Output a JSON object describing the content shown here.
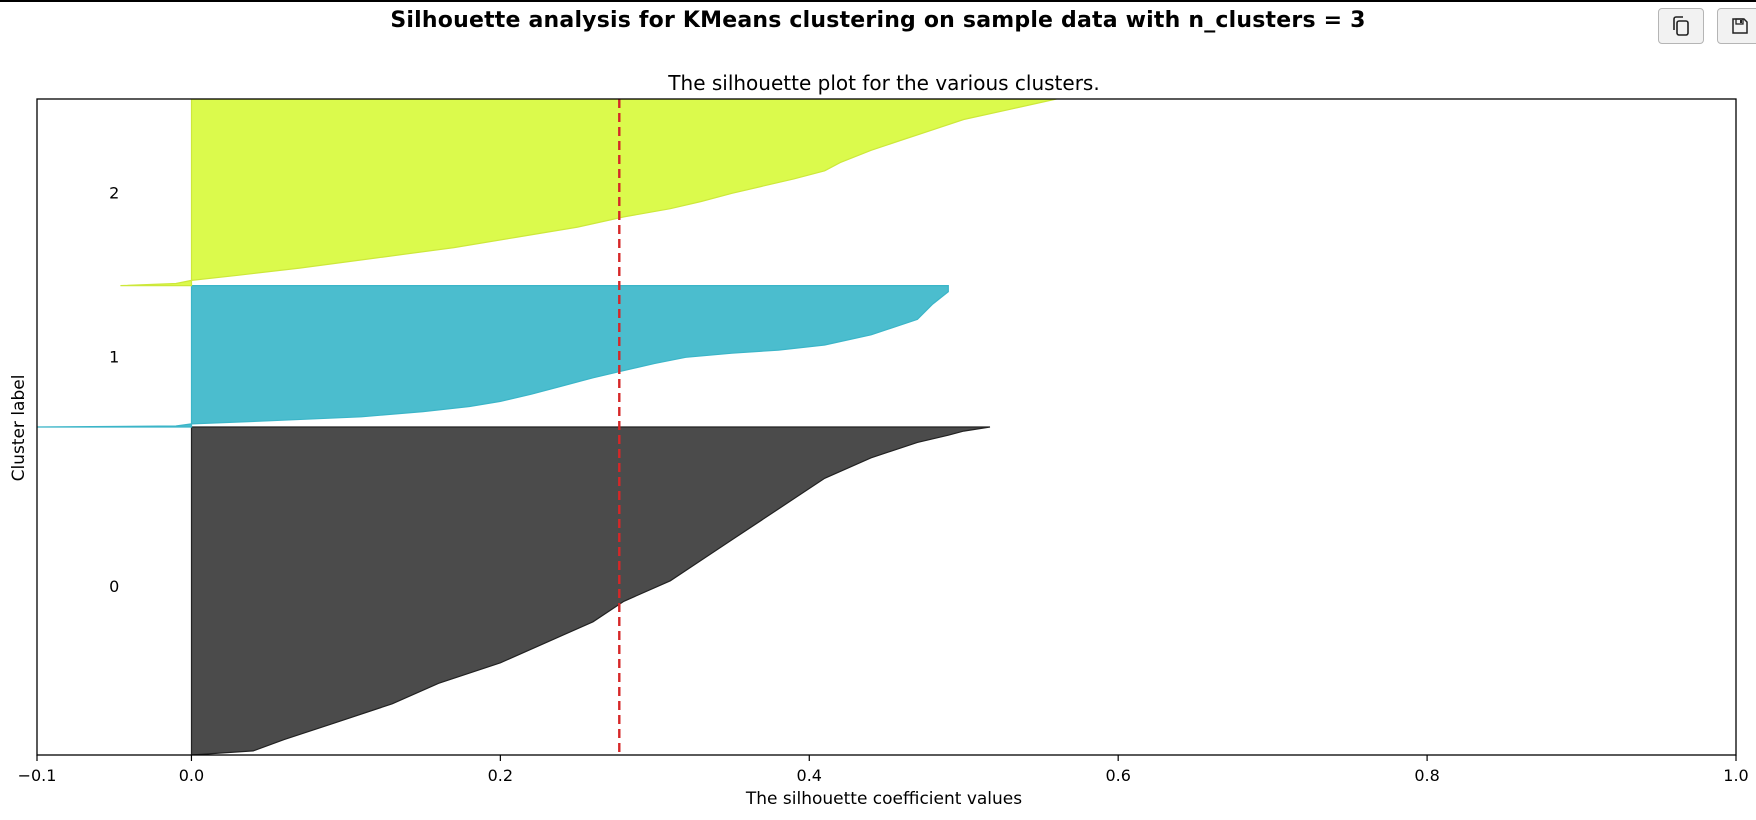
{
  "figure": {
    "suptitle": "Silhouette analysis for KMeans clustering on sample data with n_clusters = 3"
  },
  "toolbar": {
    "copy_icon": "copy-icon",
    "save_icon": "save-icon"
  },
  "chart_data": {
    "type": "area",
    "title": "The silhouette plot for the various clusters.",
    "xlabel": "The silhouette coefficient values",
    "ylabel": "Cluster label",
    "xlim": [
      -0.1,
      1.0
    ],
    "ylim": [
      0,
      640
    ],
    "xticks": [
      -0.1,
      0.0,
      0.2,
      0.4,
      0.6,
      0.8,
      1.0
    ],
    "xtick_labels": [
      "−0.1",
      "0.0",
      "0.2",
      "0.4",
      "0.6",
      "0.8",
      "1.0"
    ],
    "yticks_visible": false,
    "grid": false,
    "average_silhouette_score": 0.277,
    "average_line_color": "#d62728",
    "clusters": [
      {
        "label": "0",
        "color": "#4b4b4b",
        "edge": "#222222",
        "y_lower": 0,
        "y_upper": 320,
        "label_y": 165,
        "profile": [
          [
            0,
            0.0
          ],
          [
            4,
            0.04
          ],
          [
            15,
            0.06
          ],
          [
            30,
            0.09
          ],
          [
            50,
            0.13
          ],
          [
            70,
            0.16
          ],
          [
            90,
            0.2
          ],
          [
            110,
            0.23
          ],
          [
            130,
            0.26
          ],
          [
            150,
            0.28
          ],
          [
            170,
            0.31
          ],
          [
            190,
            0.33
          ],
          [
            210,
            0.35
          ],
          [
            230,
            0.37
          ],
          [
            250,
            0.39
          ],
          [
            270,
            0.41
          ],
          [
            290,
            0.44
          ],
          [
            305,
            0.47
          ],
          [
            312,
            0.49
          ],
          [
            316,
            0.5
          ],
          [
            320,
            0.517
          ]
        ]
      },
      {
        "label": "1",
        "color": "#4bbdce",
        "edge": "#3bb5c8",
        "y_lower": 320,
        "y_upper": 458,
        "label_y": 389,
        "profile": [
          [
            320,
            -0.1
          ],
          [
            321,
            -0.01
          ],
          [
            323,
            0.0
          ],
          [
            326,
            0.05
          ],
          [
            330,
            0.11
          ],
          [
            335,
            0.15
          ],
          [
            340,
            0.18
          ],
          [
            345,
            0.2
          ],
          [
            352,
            0.22
          ],
          [
            360,
            0.24
          ],
          [
            368,
            0.26
          ],
          [
            375,
            0.28
          ],
          [
            382,
            0.3
          ],
          [
            388,
            0.32
          ],
          [
            392,
            0.35
          ],
          [
            395,
            0.38
          ],
          [
            400,
            0.41
          ],
          [
            410,
            0.44
          ],
          [
            425,
            0.47
          ],
          [
            440,
            0.48
          ],
          [
            452,
            0.49
          ],
          [
            458,
            0.49
          ]
        ]
      },
      {
        "label": "2",
        "color": "#dbfa4c",
        "edge": "#cde83a",
        "y_lower": 458,
        "y_upper": 640,
        "label_y": 549,
        "profile": [
          [
            458,
            -0.046
          ],
          [
            460,
            -0.01
          ],
          [
            463,
            0.0
          ],
          [
            468,
            0.03
          ],
          [
            475,
            0.07
          ],
          [
            485,
            0.12
          ],
          [
            495,
            0.17
          ],
          [
            505,
            0.21
          ],
          [
            515,
            0.25
          ],
          [
            525,
            0.28
          ],
          [
            533,
            0.31
          ],
          [
            540,
            0.33
          ],
          [
            548,
            0.35
          ],
          [
            555,
            0.37
          ],
          [
            562,
            0.39
          ],
          [
            570,
            0.41
          ],
          [
            578,
            0.42
          ],
          [
            590,
            0.44
          ],
          [
            600,
            0.46
          ],
          [
            610,
            0.48
          ],
          [
            620,
            0.5
          ],
          [
            630,
            0.53
          ],
          [
            640,
            0.56
          ]
        ]
      }
    ]
  }
}
